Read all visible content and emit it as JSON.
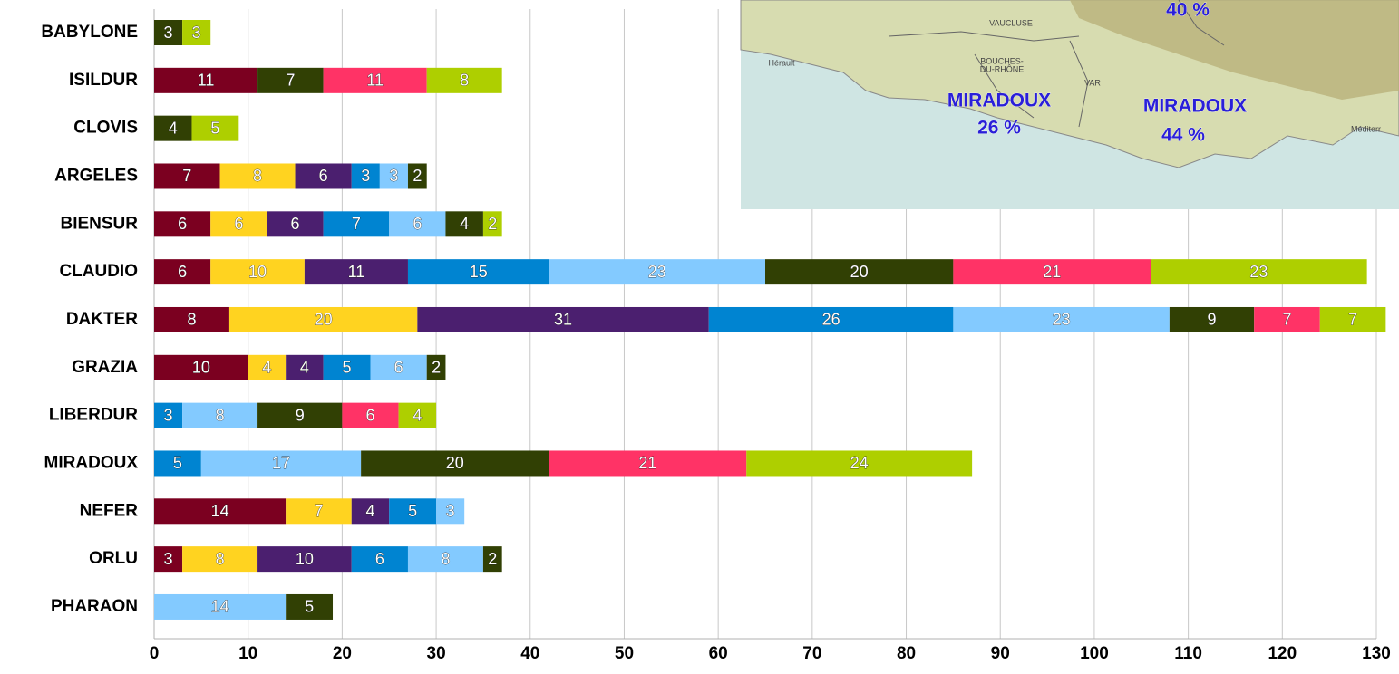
{
  "chart_data": {
    "type": "stacked-barh",
    "categories": [
      "BABYLONE",
      "ISILDUR",
      "CLOVIS",
      "ARGELES",
      "BIENSUR",
      "CLAUDIO",
      "DAKTER",
      "GRAZIA",
      "LIBERDUR",
      "MIRADOUX",
      "NEFER",
      "ORLU",
      "PHARAON"
    ],
    "series": [
      {
        "color": "#7b0020",
        "values": [
          null,
          11,
          null,
          7,
          6,
          6,
          8,
          10,
          null,
          null,
          14,
          3,
          null
        ]
      },
      {
        "color": "#ffd320",
        "values": [
          null,
          null,
          null,
          8,
          6,
          10,
          20,
          4,
          null,
          null,
          7,
          8,
          null
        ]
      },
      {
        "color": "#4b1f6f",
        "values": [
          null,
          null,
          null,
          6,
          6,
          11,
          31,
          4,
          null,
          null,
          4,
          10,
          null
        ]
      },
      {
        "color": "#0084d1",
        "values": [
          null,
          null,
          null,
          3,
          7,
          15,
          26,
          5,
          3,
          5,
          5,
          6,
          null
        ]
      },
      {
        "color": "#83caff",
        "values": [
          null,
          null,
          null,
          3,
          6,
          23,
          23,
          6,
          8,
          17,
          3,
          8,
          14
        ]
      },
      {
        "color": "#314004",
        "values": [
          3,
          7,
          4,
          2,
          4,
          20,
          9,
          2,
          9,
          20,
          null,
          2,
          5
        ]
      },
      {
        "color": "#ff3366",
        "values": [
          null,
          11,
          null,
          null,
          null,
          21,
          7,
          null,
          6,
          21,
          null,
          null,
          null
        ]
      },
      {
        "color": "#aecf00",
        "values": [
          3,
          8,
          5,
          null,
          2,
          23,
          7,
          null,
          4,
          24,
          null,
          null,
          null
        ]
      }
    ],
    "xlim": [
      0,
      130
    ],
    "xticks": [
      0,
      10,
      20,
      30,
      40,
      50,
      60,
      70,
      80,
      90,
      100,
      110,
      120,
      130
    ],
    "grid": true
  },
  "map": {
    "labels": [
      "40 %",
      "VAUCLUSE",
      "Hérault",
      "BOUCHES-",
      "DU-RHÔNE",
      "VAR",
      "MIRADOUX",
      "26 %",
      "MIRADOUX",
      "44 %",
      "Méditerr"
    ]
  }
}
